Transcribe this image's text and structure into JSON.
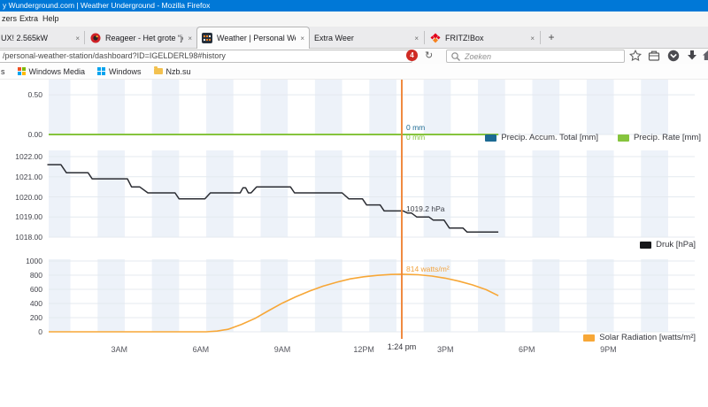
{
  "window": {
    "title": "y Wunderground.com | Weather Underground - Mozilla Firefox"
  },
  "menubar": {
    "items": [
      "zers",
      "Extra",
      "Help"
    ]
  },
  "icons": {
    "close": "×",
    "new_tab": "+",
    "reload": "↻"
  },
  "tabstrip": {
    "tabs": [
      {
        "title": "UX! 2.565kW",
        "active": false
      },
      {
        "title": "Reageer - Het grote “jouw…",
        "active": false,
        "favicon": "reageer-icon"
      },
      {
        "title": "Weather | Personal Weath…",
        "active": true,
        "favicon": "wunderground-icon"
      },
      {
        "title": "Extra Weer",
        "active": false
      },
      {
        "title": "FRITZ!Box",
        "active": false,
        "favicon": "fritzbox-icon"
      }
    ]
  },
  "navbar": {
    "url": "/personal-weather-station/dashboard?ID=IGELDERL98#history",
    "adblock_count": "4",
    "search_placeholder": "Zoeken"
  },
  "bookmarks": {
    "items": [
      {
        "label": "s"
      },
      {
        "label": "Windows Media",
        "icon": "windows-color-icon"
      },
      {
        "label": "Windows",
        "icon": "windows-blue-icon"
      },
      {
        "label": "Nzb.su",
        "icon": "folder-icon"
      }
    ]
  },
  "crosshair": {
    "time_label": "1:24 pm",
    "precip_accum_label": "0 mm",
    "precip_rate_label": "0 mm",
    "pressure_label": "1019.2 hPa",
    "solar_label": "814 watts/m²",
    "color": "#ef8436"
  },
  "chart_data": [
    {
      "type": "line",
      "name": "precipitation",
      "ylim": [
        0,
        0.69
      ],
      "yticks": [
        {
          "v": 0.5,
          "label": "0.50"
        },
        {
          "v": 0,
          "label": "0.00"
        }
      ],
      "series": [
        {
          "name": "Precip. Accum. Total [mm]",
          "color": "#1c6a93",
          "x": [
            0.4,
            16.95
          ],
          "values": [
            0,
            0
          ]
        },
        {
          "name": "Precip. Rate [mm]",
          "color": "#86c43d",
          "x": [
            0.4,
            16.95
          ],
          "values": [
            0,
            0
          ]
        }
      ],
      "legend_position": "bottom-right"
    },
    {
      "type": "line",
      "name": "pressure",
      "ylim": [
        1018,
        1022.31
      ],
      "yticks": [
        {
          "v": 1022,
          "label": "1022.00"
        },
        {
          "v": 1021,
          "label": "1021.00"
        },
        {
          "v": 1020,
          "label": "1020.00"
        },
        {
          "v": 1019,
          "label": "1019.00"
        },
        {
          "v": 1018,
          "label": "1018.00"
        }
      ],
      "series": [
        {
          "name": "Druk [hPa]",
          "color": "#2b2d33",
          "x": [
            0.35,
            0.85,
            1.05,
            1.85,
            2.0,
            3.3,
            3.45,
            3.75,
            4.05,
            5.05,
            5.2,
            6.15,
            6.35,
            7.45,
            7.55,
            7.65,
            7.75,
            7.85,
            8.05,
            9.3,
            9.45,
            11.2,
            11.45,
            11.95,
            12.1,
            12.6,
            12.75,
            13.45,
            13.6,
            13.75,
            13.95,
            14.4,
            14.55,
            14.95,
            15.15,
            15.65,
            15.8,
            16.95
          ],
          "values": [
            1021.6,
            1021.6,
            1021.2,
            1021.2,
            1020.9,
            1020.9,
            1020.5,
            1020.5,
            1020.2,
            1020.2,
            1019.9,
            1019.9,
            1020.2,
            1020.2,
            1020.45,
            1020.45,
            1020.2,
            1020.2,
            1020.5,
            1020.5,
            1020.2,
            1020.2,
            1019.9,
            1019.9,
            1019.6,
            1019.6,
            1019.3,
            1019.3,
            1019.2,
            1019.2,
            1019.0,
            1019.0,
            1018.85,
            1018.85,
            1018.45,
            1018.45,
            1018.25,
            1018.25
          ]
        }
      ],
      "legend_position": "bottom-right"
    },
    {
      "type": "line",
      "name": "solar-radiation",
      "ylim": [
        0,
        1025
      ],
      "yticks": [
        {
          "v": 1000,
          "label": "1000"
        },
        {
          "v": 800,
          "label": "800"
        },
        {
          "v": 600,
          "label": "600"
        },
        {
          "v": 400,
          "label": "400"
        },
        {
          "v": 200,
          "label": "200"
        },
        {
          "v": 0,
          "label": "0"
        }
      ],
      "xticks": [
        {
          "h": 3,
          "label": "3AM"
        },
        {
          "h": 6,
          "label": "6AM"
        },
        {
          "h": 9,
          "label": "9AM"
        },
        {
          "h": 12,
          "label": "12PM"
        },
        {
          "h": 15,
          "label": "3PM"
        },
        {
          "h": 18,
          "label": "6PM"
        },
        {
          "h": 21,
          "label": "9PM"
        }
      ],
      "crosshair_hour": 13.4,
      "series": [
        {
          "name": "Solar Radiation [watts/m²]",
          "color": "#f7a737",
          "x": [
            0.4,
            6.2,
            6.6,
            7,
            7.5,
            8,
            8.5,
            9,
            9.5,
            10,
            10.5,
            11,
            11.5,
            12,
            12.5,
            13,
            13.4,
            14,
            14.5,
            15,
            15.5,
            16,
            16.5,
            16.95
          ],
          "values": [
            0,
            0,
            10,
            35,
            105,
            190,
            300,
            405,
            495,
            575,
            645,
            700,
            748,
            778,
            798,
            810,
            814,
            806,
            788,
            757,
            715,
            663,
            595,
            510
          ]
        }
      ],
      "legend_position": "bottom-right"
    }
  ]
}
